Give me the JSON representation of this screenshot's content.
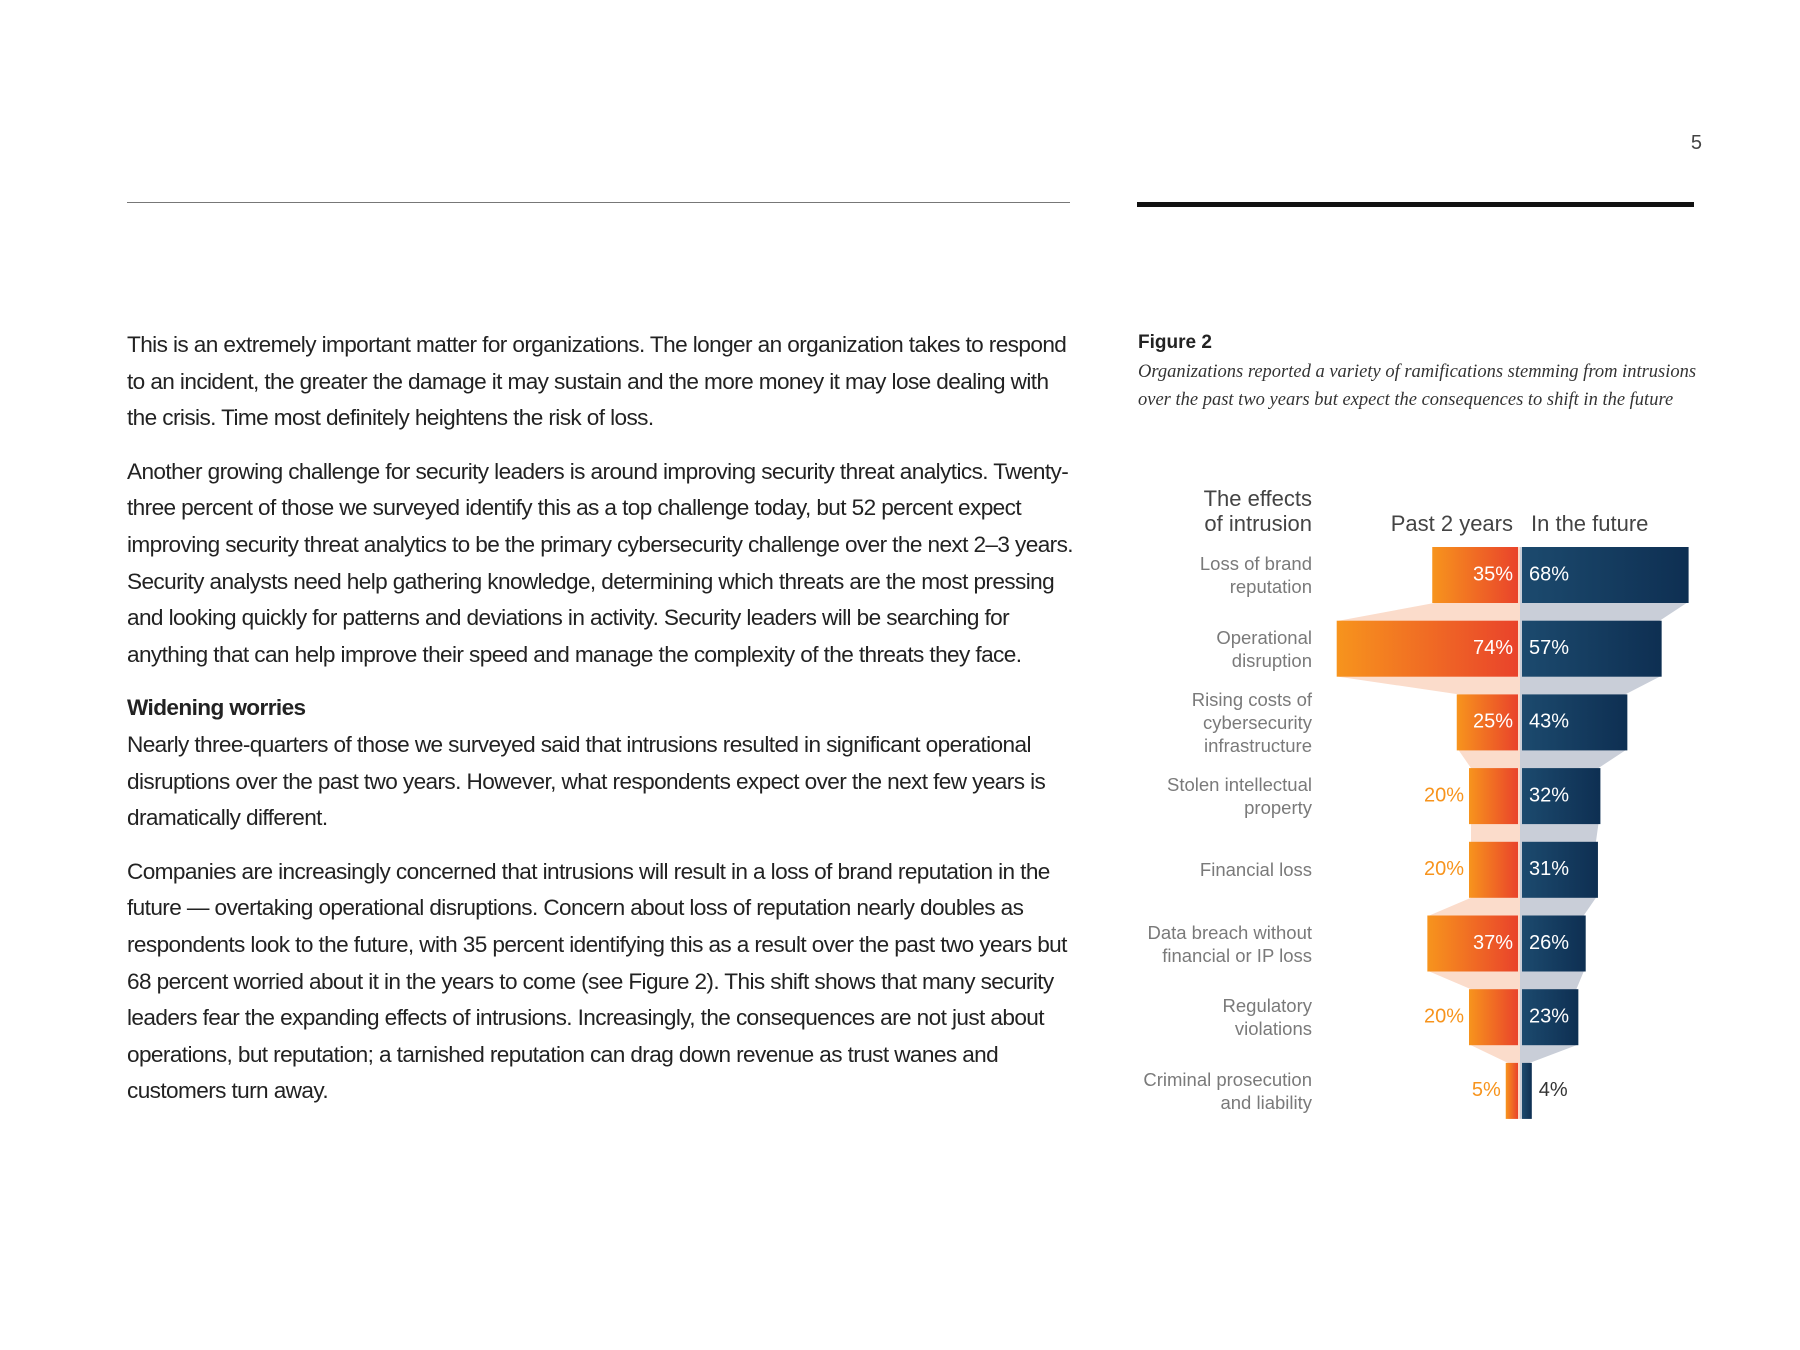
{
  "page_number": "5",
  "body": {
    "sections": [
      {
        "paragraphs": [
          "This is an extremely important matter for organizations. The longer an organization takes to respond to an incident, the greater the damage it may sustain and the more money it may lose dealing with the crisis. Time most definitely heightens the risk of loss.",
          "Another growing challenge for security leaders is around improving security threat analytics. Twenty-three percent of those we surveyed identify this as a top challenge today, but 52 percent expect improving security threat analytics to be the primary cybersecurity challenge over the next 2–3 years. Security analysts need help gathering knowledge, determining which threats are the most pressing and looking quickly for patterns and deviations in activity. Security leaders will be searching for anything that can help improve their speed and manage the complexity of the threats they face."
        ]
      },
      {
        "heading": "Widening worries",
        "paragraphs": [
          "Nearly three-quarters of those we surveyed said that intrusions resulted in significant operational disruptions over the past two years. However, what respondents expect over the next few years is dramatically different.",
          "Companies are increasingly concerned that intrusions will result in a loss of brand reputation in the future — overtaking operational disruptions. Concern about loss of reputation nearly doubles as respondents look to the future, with 35 percent identifying this as a result over the past two years but 68 percent worried about it in the years to come (see Figure 2). This shift shows that many security leaders fear the expanding effects of intrusions. Increasingly, the consequences are not just about operations, but reputation; a tarnished reputation can drag down revenue as trust wanes and customers turn away."
        ]
      }
    ]
  },
  "figure": {
    "label": "Figure 2",
    "caption": "Organizations reported a variety of ramifications stemming from intrusions over the past two years but expect the consequences to shift in the future"
  },
  "chart_data": {
    "type": "diverging-bar",
    "category_axis_title": "The effects\nof intrusion",
    "categories": [
      "Loss of brand\nreputation",
      "Operational\ndisruption",
      "Rising costs of\ncybersecurity\ninfrastructure",
      "Stolen intellectual\nproperty",
      "Financial loss",
      "Data breach without\nfinancial or IP loss",
      "Regulatory\nviolations",
      "Criminal prosecution\nand liability"
    ],
    "series": [
      {
        "name": "Past 2 years",
        "color": "#f7941d",
        "values": [
          35,
          74,
          25,
          20,
          20,
          37,
          20,
          5
        ],
        "value_labels": [
          "35%",
          "74%",
          "25%",
          "20%",
          "20%",
          "37%",
          "20%",
          "5%"
        ]
      },
      {
        "name": "In the future",
        "color": "#0e2f52",
        "values": [
          68,
          57,
          43,
          32,
          31,
          26,
          23,
          4
        ],
        "value_labels": [
          "68%",
          "57%",
          "43%",
          "32%",
          "31%",
          "26%",
          "23%",
          "4%"
        ]
      }
    ]
  }
}
